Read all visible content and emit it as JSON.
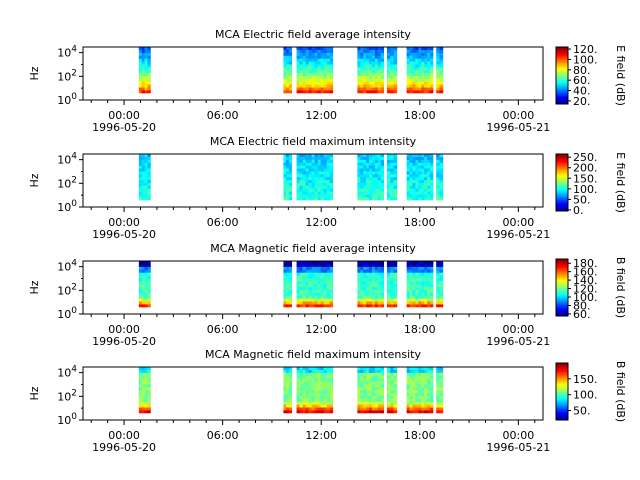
{
  "chart_data": [
    {
      "type": "heatmap",
      "title": "MCA  Electric field average intensity",
      "ylabel": "Hz",
      "yscale": "log",
      "ylim": [
        1,
        30000
      ],
      "y_ticks": [
        {
          "exp": "0"
        },
        {
          "exp": "2"
        },
        {
          "exp": "4"
        }
      ],
      "x_ticks": [
        {
          "time": "00:00",
          "date": "1996-05-20"
        },
        {
          "time": "06:00",
          "date": ""
        },
        {
          "time": "12:00",
          "date": ""
        },
        {
          "time": "18:00",
          "date": ""
        },
        {
          "time": "00:00",
          "date": "1996-05-21"
        }
      ],
      "xlim_hours": [
        -2.5,
        25.5
      ],
      "colorbar": {
        "label": "E field (dB)",
        "range": [
          14,
          124
        ],
        "ticks": [
          "20.",
          "40.",
          "60.",
          "80.",
          "100.",
          "120."
        ]
      },
      "data_intervals_hours": [
        [
          0.9,
          1.6
        ],
        [
          9.7,
          10.2
        ],
        [
          10.5,
          12.7
        ],
        [
          14.2,
          15.8
        ],
        [
          16.0,
          16.6
        ],
        [
          17.2,
          18.8
        ],
        [
          19.0,
          19.4
        ]
      ],
      "intensity": "low at high frequency, rising toward low frequency; high values near 10^0-10^1 Hz"
    },
    {
      "type": "heatmap",
      "title": "MCA  Electric field maximum intensity",
      "ylabel": "Hz",
      "yscale": "log",
      "ylim": [
        1,
        30000
      ],
      "y_ticks": [
        {
          "exp": "0"
        },
        {
          "exp": "2"
        },
        {
          "exp": "4"
        }
      ],
      "x_ticks": [
        {
          "time": "00:00",
          "date": "1996-05-20"
        },
        {
          "time": "06:00",
          "date": ""
        },
        {
          "time": "12:00",
          "date": ""
        },
        {
          "time": "18:00",
          "date": ""
        },
        {
          "time": "00:00",
          "date": "1996-05-21"
        }
      ],
      "xlim_hours": [
        -2.5,
        25.5
      ],
      "colorbar": {
        "label": "E field (dB)",
        "range": [
          -5,
          265
        ],
        "ticks": [
          "0.",
          "50.",
          "100.",
          "150.",
          "200.",
          "250."
        ]
      },
      "data_intervals_hours": [
        [
          0.9,
          1.6
        ],
        [
          9.7,
          10.2
        ],
        [
          10.5,
          12.7
        ],
        [
          14.2,
          15.8
        ],
        [
          16.0,
          16.6
        ],
        [
          17.2,
          18.8
        ],
        [
          19.0,
          19.4
        ]
      ],
      "intensity": "mostly 60-110 dB (cyan to green)"
    },
    {
      "type": "heatmap",
      "title": "MCA  Magnetic field average intensity",
      "ylabel": "Hz",
      "yscale": "log",
      "ylim": [
        1,
        30000
      ],
      "y_ticks": [
        {
          "exp": "0"
        },
        {
          "exp": "2"
        },
        {
          "exp": "4"
        }
      ],
      "x_ticks": [
        {
          "time": "00:00",
          "date": "1996-05-20"
        },
        {
          "time": "06:00",
          "date": ""
        },
        {
          "time": "12:00",
          "date": ""
        },
        {
          "time": "18:00",
          "date": ""
        },
        {
          "time": "00:00",
          "date": "1996-05-21"
        }
      ],
      "xlim_hours": [
        -2.5,
        25.5
      ],
      "colorbar": {
        "label": "B field (dB)",
        "range": [
          55,
          190
        ],
        "ticks": [
          "60.",
          "80.",
          "100.",
          "120.",
          "140.",
          "160.",
          "180."
        ]
      },
      "data_intervals_hours": [
        [
          0.9,
          1.6
        ],
        [
          9.7,
          10.2
        ],
        [
          10.5,
          12.7
        ],
        [
          14.2,
          15.8
        ],
        [
          16.0,
          16.6
        ],
        [
          17.2,
          18.8
        ],
        [
          19.0,
          19.4
        ]
      ],
      "intensity": "blue near 10^4 Hz, green mid-band, yellow-red near 10^0-10^1 Hz"
    },
    {
      "type": "heatmap",
      "title": "MCA  Magnetic field maximum intensity",
      "ylabel": "Hz",
      "yscale": "log",
      "ylim": [
        1,
        30000
      ],
      "y_ticks": [
        {
          "exp": "0"
        },
        {
          "exp": "2"
        },
        {
          "exp": "4"
        }
      ],
      "x_ticks": [
        {
          "time": "00:00",
          "date": "1996-05-20"
        },
        {
          "time": "06:00",
          "date": ""
        },
        {
          "time": "12:00",
          "date": ""
        },
        {
          "time": "18:00",
          "date": ""
        },
        {
          "time": "00:00",
          "date": "1996-05-21"
        }
      ],
      "xlim_hours": [
        -2.5,
        25.5
      ],
      "colorbar": {
        "label": "B field (dB)",
        "range": [
          20,
          200
        ],
        "ticks": [
          "50.",
          "100.",
          "150."
        ]
      },
      "data_intervals_hours": [
        [
          0.9,
          1.6
        ],
        [
          9.7,
          10.2
        ],
        [
          10.5,
          12.7
        ],
        [
          14.2,
          15.8
        ],
        [
          16.0,
          16.6
        ],
        [
          17.2,
          18.8
        ],
        [
          19.0,
          19.4
        ]
      ],
      "intensity": "green mid-band, yellow-red near lowest frequencies"
    }
  ]
}
